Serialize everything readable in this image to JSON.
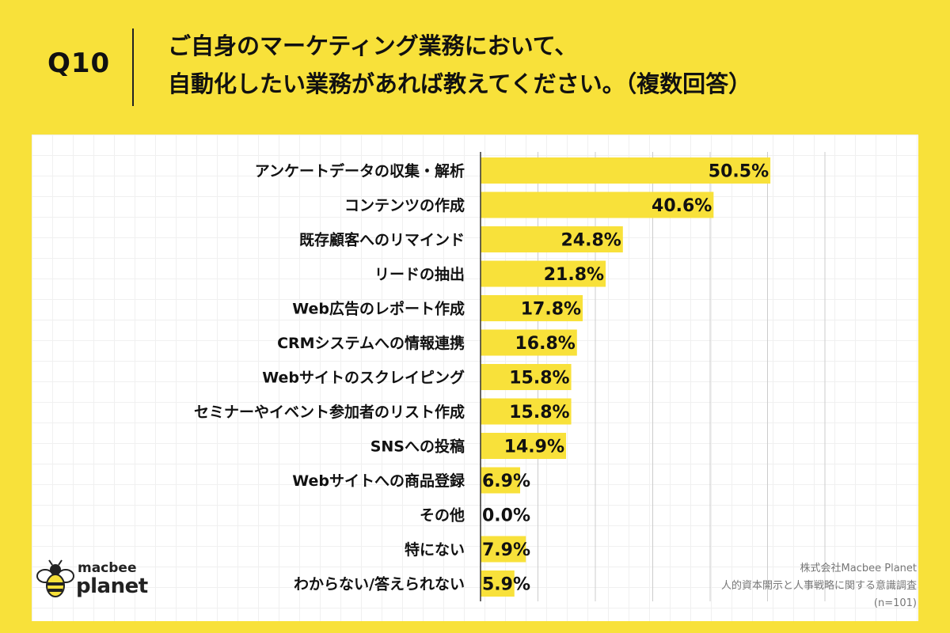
{
  "header": {
    "question_label": "Q10",
    "question_line1": "ご自身のマーケティング業務において、",
    "question_line2": "自動化したい業務があれば教えてください。（複数回答）"
  },
  "chart_data": {
    "type": "bar",
    "orientation": "horizontal",
    "categories": [
      "アンケートデータの収集・解析",
      "コンテンツの作成",
      "既存顧客へのリマインド",
      "リードの抽出",
      "Web広告のレポート作成",
      "CRMシステムへの情報連携",
      "Webサイトのスクレイピング",
      "セミナーやイベント参加者のリスト作成",
      "SNSへの投稿",
      "Webサイトへの商品登録",
      "その他",
      "特にない",
      "わからない/答えられない"
    ],
    "values": [
      50.5,
      40.6,
      24.8,
      21.8,
      17.8,
      16.8,
      15.8,
      15.8,
      14.9,
      6.9,
      0.0,
      7.9,
      5.9
    ],
    "labels": [
      "50.5%",
      "40.6%",
      "24.8%",
      "21.8%",
      "17.8%",
      "16.8%",
      "15.8%",
      "15.8%",
      "14.9%",
      "6.9%",
      "0.0%",
      "7.9%",
      "5.9%"
    ],
    "xlim": [
      0,
      60
    ],
    "grid": true,
    "bar_color": "#F8E13A",
    "gridline_color": "#cccccc"
  },
  "footer": {
    "company": "株式会社Macbee Planet",
    "survey": "人的資本開示と人事戦略に関する意識調査",
    "sample": "(n=101)"
  },
  "logo": {
    "top": "macbee",
    "bottom": "planet",
    "accent_color": "#E53935"
  }
}
